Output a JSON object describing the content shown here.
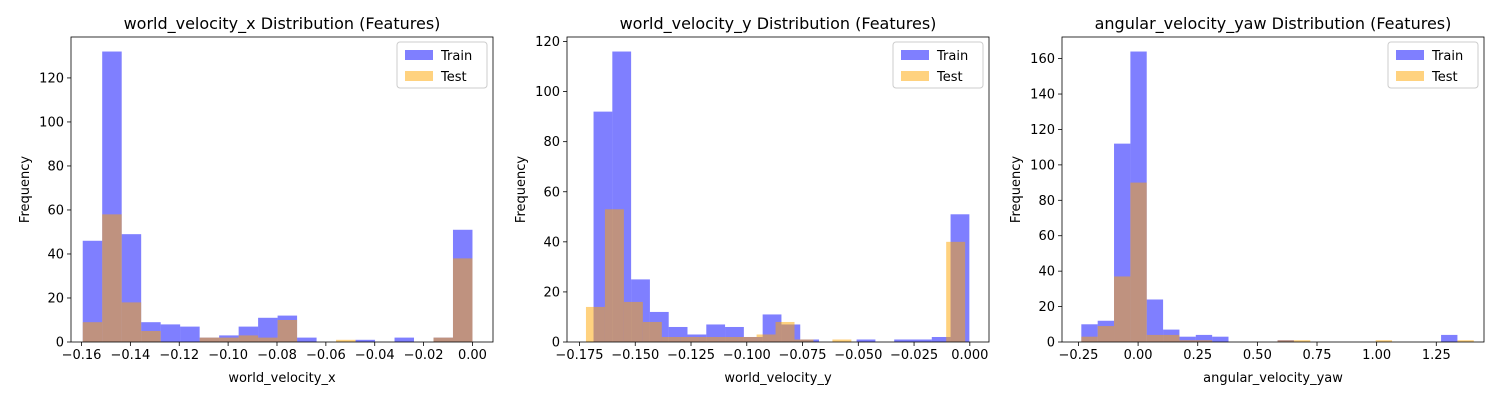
{
  "chart_data": [
    {
      "type": "histogram",
      "title": "world_velocity_x Distribution (Features)",
      "xlabel": "world_velocity_x",
      "ylabel": "Frequency",
      "xlim": [
        -0.1643,
        0.0084
      ],
      "ylim": [
        0,
        138.6
      ],
      "xticks": [
        -0.16,
        -0.14,
        -0.12,
        -0.1,
        -0.08,
        -0.06,
        -0.04,
        -0.02,
        0.0
      ],
      "xtick_labels": [
        "−0.16",
        "−0.14",
        "−0.12",
        "−0.10",
        "−0.08",
        "−0.06",
        "−0.04",
        "−0.02",
        "0.00"
      ],
      "yticks": [
        0,
        20,
        40,
        60,
        80,
        100,
        120
      ],
      "ytick_labels": [
        "0",
        "20",
        "40",
        "60",
        "80",
        "100",
        "120"
      ],
      "legend": "top-right",
      "series": [
        {
          "name": "Train",
          "color": "#0000ff",
          "opacity": 0.5,
          "bin_edges": [
            -0.1595,
            -0.15153,
            -0.14355,
            -0.13558,
            -0.1276,
            -0.11963,
            -0.11165,
            -0.10368,
            -0.0957,
            -0.08773,
            -0.07975,
            -0.07178,
            -0.0638,
            -0.05583,
            -0.04785,
            -0.03988,
            -0.0319,
            -0.02393,
            -0.01595,
            -0.00798,
            0.0
          ],
          "counts": [
            46,
            132,
            49,
            9,
            8,
            7,
            2,
            3,
            7,
            11,
            12,
            2,
            0,
            0,
            1,
            0,
            2,
            0,
            2,
            51
          ]
        },
        {
          "name": "Test",
          "color": "#ffa500",
          "opacity": 0.5,
          "bin_edges": [
            -0.1595,
            -0.15153,
            -0.14355,
            -0.13558,
            -0.1276,
            -0.11963,
            -0.11165,
            -0.10368,
            -0.0957,
            -0.08773,
            -0.07975,
            -0.07178,
            -0.0638,
            -0.05583,
            -0.04785,
            -0.03988,
            -0.0319,
            -0.02393,
            -0.01595,
            -0.00798,
            0.0
          ],
          "counts": [
            9,
            58,
            18,
            5,
            0,
            0,
            2,
            2,
            3,
            2,
            10,
            0,
            0,
            1,
            0,
            0,
            0,
            0,
            2,
            38
          ]
        }
      ]
    },
    {
      "type": "histogram",
      "title": "world_velocity_y Distribution (Features)",
      "xlabel": "world_velocity_y",
      "ylabel": "Frequency",
      "xlim": [
        -0.1806,
        0.0086
      ],
      "ylim": [
        0,
        121.8
      ],
      "xticks": [
        -0.175,
        -0.15,
        -0.125,
        -0.1,
        -0.075,
        -0.05,
        -0.025,
        0.0
      ],
      "xtick_labels": [
        "−0.175",
        "−0.150",
        "−0.125",
        "−0.100",
        "−0.075",
        "−0.050",
        "−0.025",
        "0.000"
      ],
      "yticks": [
        0,
        20,
        40,
        60,
        80,
        100,
        120
      ],
      "ytick_labels": [
        "0",
        "20",
        "40",
        "60",
        "80",
        "100",
        "120"
      ],
      "legend": "top-right",
      "series": [
        {
          "name": "Train",
          "color": "#0000ff",
          "opacity": 0.5,
          "bin_edges": [
            -0.1687,
            -0.16028,
            -0.15185,
            -0.14343,
            -0.135,
            -0.12658,
            -0.11815,
            -0.10973,
            -0.1013,
            -0.09288,
            -0.08445,
            -0.07603,
            -0.0676,
            -0.05918,
            -0.05075,
            -0.04233,
            -0.0339,
            -0.02548,
            -0.01705,
            -0.00863,
            -0.0002
          ],
          "counts": [
            92,
            116,
            25,
            12,
            6,
            3,
            7,
            6,
            2,
            11,
            7,
            1,
            0,
            0,
            1,
            0,
            1,
            1,
            2,
            51
          ]
        },
        {
          "name": "Test",
          "color": "#ffa500",
          "opacity": 0.5,
          "bin_edges": [
            -0.1721,
            -0.1636,
            -0.1551,
            -0.1466,
            -0.1381,
            -0.1296,
            -0.1211,
            -0.1126,
            -0.1041,
            -0.0956,
            -0.0871,
            -0.0786,
            -0.0701,
            -0.0616,
            -0.0531,
            -0.0446,
            -0.0361,
            -0.0276,
            -0.0191,
            -0.0106,
            -0.0021
          ],
          "counts": [
            14,
            53,
            16,
            8,
            2,
            2,
            2,
            2,
            2,
            3,
            8,
            1,
            0,
            1,
            0,
            0,
            0,
            0,
            0,
            40
          ]
        }
      ]
    },
    {
      "type": "histogram",
      "title": "angular_velocity_yaw Distribution (Features)",
      "xlabel": "angular_velocity_yaw",
      "ylabel": "Frequency",
      "xlim": [
        -0.319,
        1.45
      ],
      "ylim": [
        0,
        172.2
      ],
      "xticks": [
        -0.25,
        0.0,
        0.25,
        0.5,
        0.75,
        1.0,
        1.25
      ],
      "xtick_labels": [
        "−0.25",
        "0.00",
        "0.25",
        "0.50",
        "0.75",
        "1.00",
        "1.25"
      ],
      "yticks": [
        0,
        20,
        40,
        60,
        80,
        100,
        120,
        140,
        160
      ],
      "ytick_labels": [
        "0",
        "20",
        "40",
        "60",
        "80",
        "100",
        "120",
        "140",
        "160"
      ],
      "legend": "top-right",
      "series": [
        {
          "name": "Train",
          "color": "#0000ff",
          "opacity": 0.5,
          "bin_edges": [
            -0.238,
            -0.16945,
            -0.1009,
            -0.03235,
            0.0362,
            0.10475,
            0.1733,
            0.24185,
            0.3104,
            0.37895,
            0.4475,
            0.51605,
            0.5846,
            0.65315,
            0.7217,
            0.79025,
            0.8588,
            0.92735,
            0.9959,
            1.06445,
            1.133,
            1.20155,
            1.2701,
            1.33865
          ],
          "counts": [
            10,
            12,
            112,
            164,
            24,
            7,
            3,
            4,
            3,
            0,
            0,
            0,
            1,
            0,
            0,
            0,
            0,
            0,
            0,
            0,
            0,
            0,
            4
          ]
        },
        {
          "name": "Test",
          "color": "#ffa500",
          "opacity": 0.5,
          "bin_edges": [
            -0.238,
            -0.16945,
            -0.1009,
            -0.03235,
            0.0362,
            0.10475,
            0.1733,
            0.24185,
            0.3104,
            0.37895,
            0.4475,
            0.51605,
            0.5846,
            0.65315,
            0.7217,
            0.79025,
            0.8588,
            0.92735,
            0.9959,
            1.06445,
            1.133,
            1.20155,
            1.2701,
            1.33865,
            1.4072
          ],
          "counts": [
            3,
            9,
            37,
            90,
            4,
            4,
            1,
            1,
            0,
            0,
            0,
            0,
            1,
            1,
            0,
            0,
            0,
            0,
            1,
            0,
            0,
            0,
            0,
            1
          ]
        }
      ]
    }
  ]
}
